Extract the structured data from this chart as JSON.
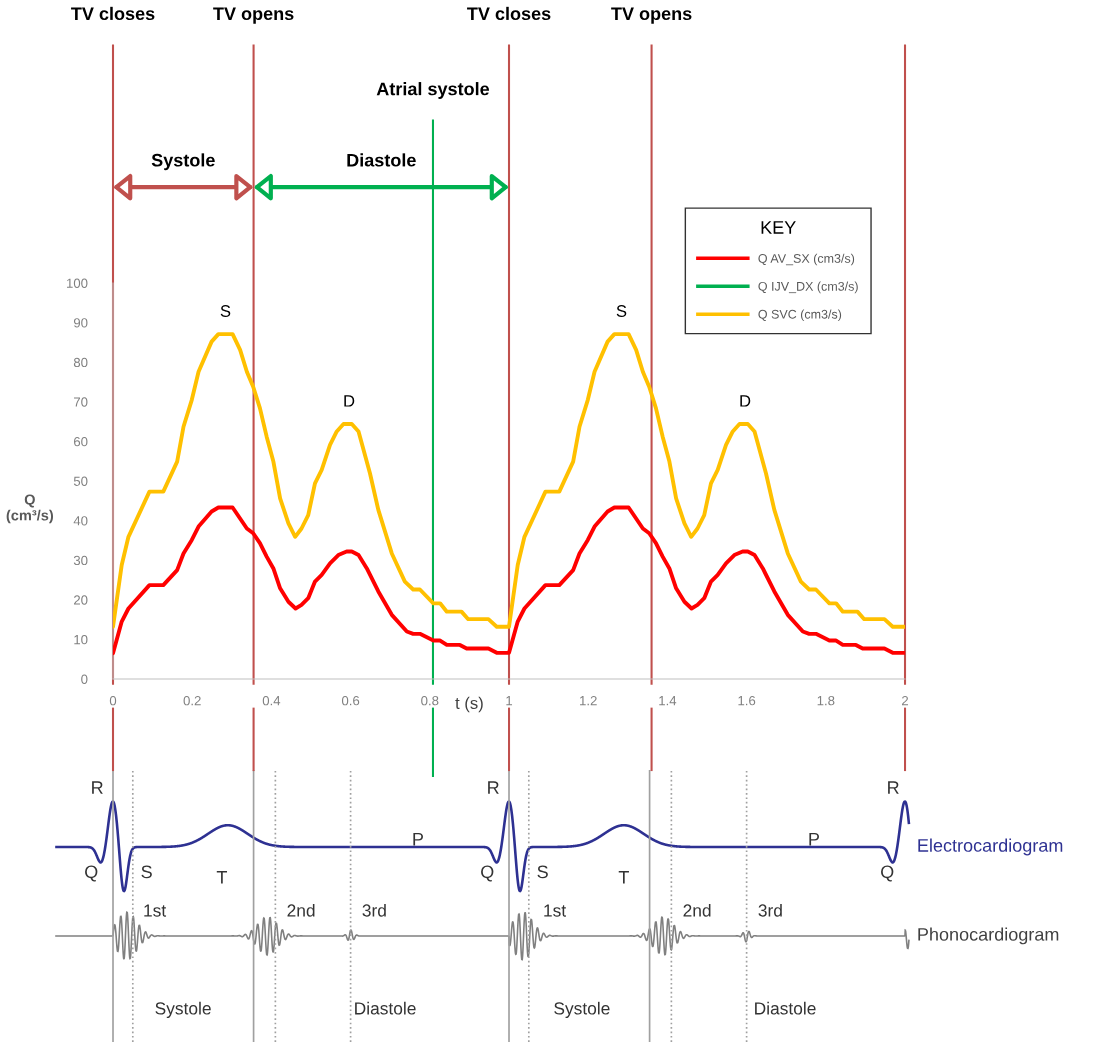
{
  "chart_data": {
    "type": "line",
    "xlabel": "t (s)",
    "ylabel": "Q\n(cm³/s)",
    "legend_title": "KEY",
    "xlim": [
      0,
      2
    ],
    "xticks": [
      0,
      0.2,
      0.4,
      0.6,
      0.8,
      1,
      1.2,
      1.4,
      1.6,
      1.8,
      2
    ],
    "ylim": [
      0,
      100
    ],
    "yticks": [
      0,
      10,
      20,
      30,
      40,
      50,
      60,
      70,
      80,
      90,
      100
    ],
    "grid": false,
    "legend": "top right",
    "marker": "none",
    "line_style": "solid",
    "series": [
      {
        "name": "Q AV_SX (cm3/s)",
        "color": "#ff0000",
        "x": [
          0,
          0.022,
          0.039,
          0.092,
          0.127,
          0.162,
          0.178,
          0.199,
          0.216,
          0.249,
          0.266,
          0.302,
          0.338,
          0.354,
          0.371,
          0.388,
          0.405,
          0.422,
          0.443,
          0.461,
          0.476,
          0.493,
          0.51,
          0.527,
          0.548,
          0.569,
          0.59,
          0.603,
          0.62,
          0.641,
          0.67,
          0.704,
          0.742,
          0.758,
          0.775,
          0.809,
          0.826,
          0.843,
          0.876,
          0.893,
          0.948,
          0.969,
          1.0,
          1.022,
          1.039,
          1.092,
          1.127,
          1.162,
          1.178,
          1.199,
          1.216,
          1.249,
          1.266,
          1.302,
          1.338,
          1.354,
          1.371,
          1.388,
          1.405,
          1.422,
          1.443,
          1.461,
          1.476,
          1.493,
          1.51,
          1.527,
          1.548,
          1.569,
          1.59,
          1.603,
          1.62,
          1.641,
          1.67,
          1.704,
          1.742,
          1.758,
          1.775,
          1.809,
          1.826,
          1.843,
          1.876,
          1.893,
          1.948,
          1.969,
          2.0
        ],
        "values": [
          6.5,
          14.5,
          17.8,
          23.7,
          23.7,
          27.5,
          31.7,
          35.1,
          38.5,
          42.3,
          43.3,
          43.3,
          38,
          36.8,
          34.3,
          30.9,
          27.9,
          22.9,
          19.5,
          17.8,
          18.7,
          20.4,
          24.6,
          26.3,
          29.2,
          31.3,
          32.2,
          32.2,
          31.3,
          27.9,
          22.1,
          16.2,
          12,
          11.4,
          11.4,
          9.7,
          9.7,
          8.6,
          8.6,
          7.7,
          7.7,
          6.6,
          6.6,
          14.5,
          17.8,
          23.7,
          23.7,
          27.5,
          31.7,
          35.1,
          38.5,
          42.3,
          43.3,
          43.3,
          38,
          36.8,
          34.3,
          30.9,
          27.9,
          22.9,
          19.5,
          17.8,
          18.7,
          20.4,
          24.6,
          26.3,
          29.2,
          31.3,
          32.2,
          32.2,
          31.3,
          27.9,
          22.1,
          16.2,
          12,
          11.4,
          11.4,
          9.7,
          9.7,
          8.6,
          8.6,
          7.7,
          7.7,
          6.6,
          6.6
        ]
      },
      {
        "name": "Q IJV_DX (cm3/s)",
        "color": "#00b050"
      },
      {
        "name": "Q SVC (cm3/s)",
        "color": "#ffc000",
        "x": [
          0,
          0.022,
          0.039,
          0.092,
          0.127,
          0.162,
          0.178,
          0.199,
          0.216,
          0.249,
          0.266,
          0.302,
          0.321,
          0.338,
          0.354,
          0.371,
          0.388,
          0.405,
          0.422,
          0.443,
          0.46,
          0.476,
          0.493,
          0.51,
          0.527,
          0.548,
          0.565,
          0.582,
          0.603,
          0.62,
          0.649,
          0.67,
          0.704,
          0.737,
          0.758,
          0.775,
          0.809,
          0.826,
          0.843,
          0.88,
          0.897,
          0.948,
          0.969,
          1.0,
          1.022,
          1.039,
          1.092,
          1.127,
          1.162,
          1.178,
          1.199,
          1.216,
          1.249,
          1.266,
          1.302,
          1.321,
          1.338,
          1.354,
          1.371,
          1.388,
          1.405,
          1.422,
          1.443,
          1.46,
          1.476,
          1.493,
          1.51,
          1.527,
          1.548,
          1.565,
          1.582,
          1.603,
          1.62,
          1.649,
          1.67,
          1.704,
          1.737,
          1.758,
          1.775,
          1.809,
          1.826,
          1.843,
          1.88,
          1.897,
          1.948,
          1.969,
          2.0
        ],
        "values": [
          13.2,
          28.8,
          35.9,
          47.3,
          47.3,
          54.9,
          63.7,
          70.5,
          77.6,
          85.2,
          87.1,
          87.1,
          83.1,
          77.6,
          73.8,
          68.4,
          61.2,
          54.9,
          45.6,
          39.3,
          35.9,
          38,
          41.4,
          49.4,
          52.8,
          59.1,
          62.5,
          64.4,
          64.4,
          62.5,
          51.9,
          42.7,
          31.7,
          24.6,
          22.6,
          22.6,
          19.1,
          19.1,
          17,
          17,
          15.1,
          15.1,
          13.2,
          13.2,
          28.8,
          35.9,
          47.3,
          47.3,
          54.9,
          63.7,
          70.5,
          77.6,
          85.2,
          87.1,
          87.1,
          83.1,
          77.6,
          73.8,
          68.4,
          61.2,
          54.9,
          45.6,
          39.3,
          35.9,
          38,
          41.4,
          49.4,
          52.8,
          59.1,
          62.5,
          64.4,
          64.4,
          62.5,
          51.9,
          42.7,
          31.7,
          24.6,
          22.6,
          22.6,
          19.1,
          19.1,
          17,
          17,
          15.1,
          15.1,
          13.2,
          13.2
        ]
      }
    ],
    "ref_lines": [
      {
        "axis": "x",
        "value": 0,
        "label": "TV closes",
        "color": "#c0504d"
      },
      {
        "axis": "x",
        "value": 0.355,
        "label": "TV opens",
        "color": "#c0504d"
      },
      {
        "axis": "x",
        "value": 0.808,
        "label": "Atrial systole",
        "color": "#00b050"
      },
      {
        "axis": "x",
        "value": 1.0,
        "label": "TV closes",
        "color": "#c0504d"
      },
      {
        "axis": "x",
        "value": 1.36,
        "label": "TV opens",
        "color": "#c0504d"
      },
      {
        "axis": "x",
        "value": 2.0,
        "color": "#c0504d"
      }
    ],
    "annotations": [
      {
        "text": "S",
        "x": 0.284,
        "y": 87.1
      },
      {
        "text": "D",
        "x": 0.596,
        "y": 64.4
      },
      {
        "text": "S",
        "x": 1.284,
        "y": 87.1
      },
      {
        "text": "D",
        "x": 1.596,
        "y": 64.4
      },
      "Systole",
      "Diastole",
      "R",
      "Q",
      "S",
      "T",
      "P",
      "R",
      "Q",
      "S",
      "T",
      "P",
      "R",
      "Q",
      "Electrocardiogram",
      "1st",
      "2nd",
      "3rd",
      "1st",
      "2nd",
      "3rd",
      "Phonocardiogram",
      "Systole",
      "Diastole",
      "Systole",
      "Diastole"
    ]
  }
}
